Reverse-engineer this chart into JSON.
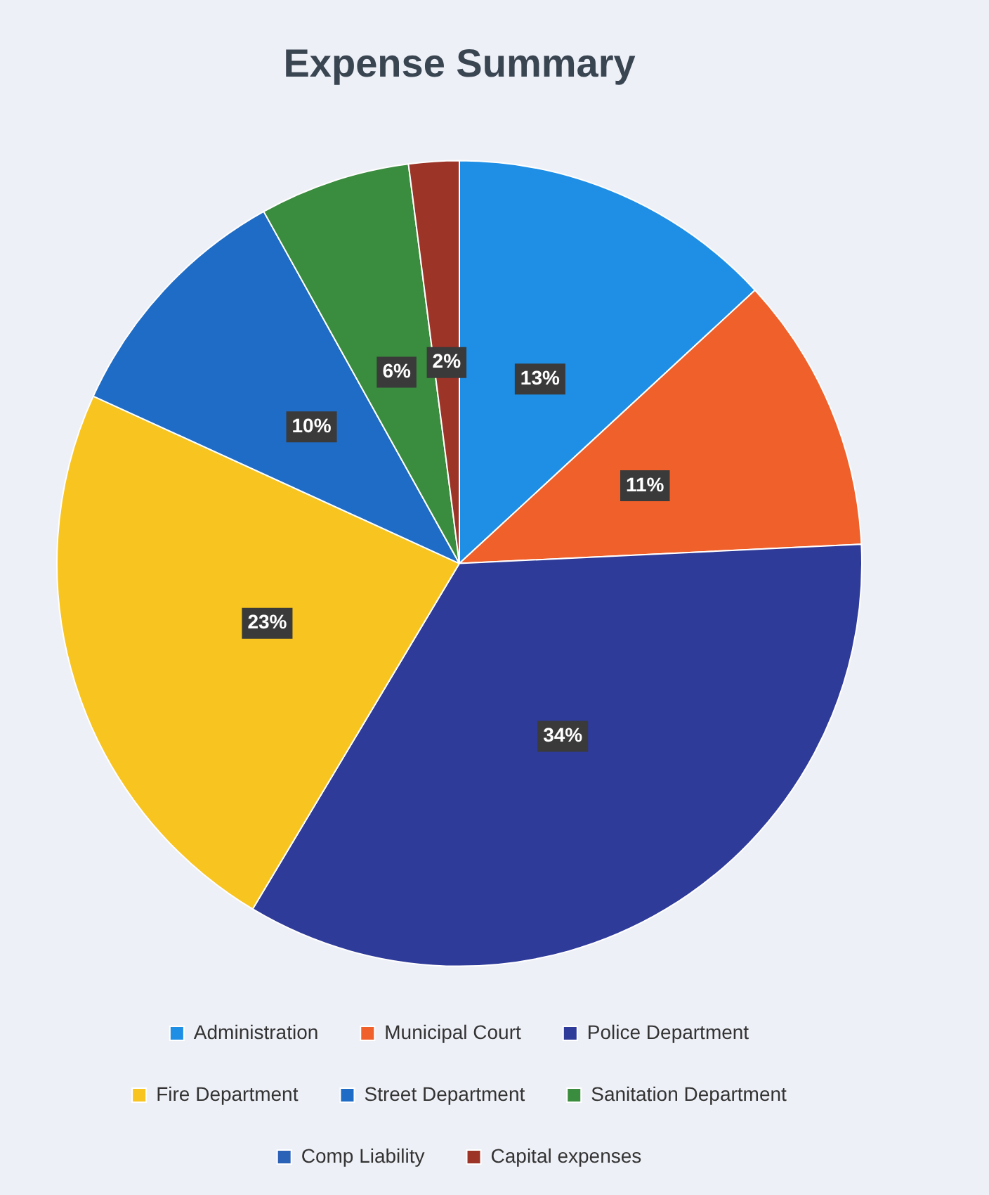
{
  "chart_data": {
    "type": "pie",
    "title": "Expense Summary",
    "categories": [
      "Administration",
      "Municipal Court",
      "Police Department",
      "Fire Department",
      "Street Department",
      "Sanitation Department",
      "Comp Liability",
      "Capital expenses"
    ],
    "values": [
      13,
      11,
      34,
      23,
      10,
      6,
      0,
      2
    ],
    "value_labels": [
      "13%",
      "11%",
      "34%",
      "23%",
      "10%",
      "6%",
      null,
      "2%"
    ],
    "colors": [
      "#1f8fe6",
      "#f0602a",
      "#2f3b99",
      "#f8c420",
      "#1f6cc6",
      "#3a8c3e",
      "#2a62b8",
      "#9c3428"
    ],
    "legend": "bottom"
  }
}
